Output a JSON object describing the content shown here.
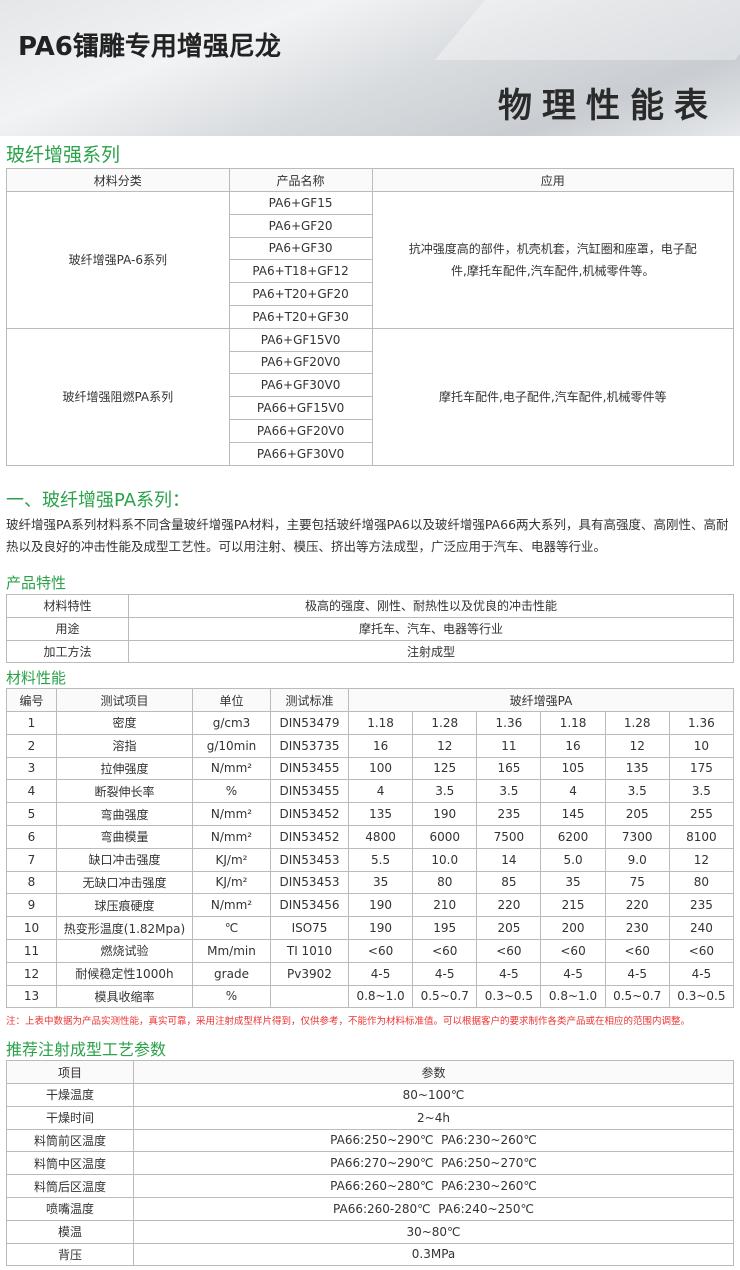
{
  "header": {
    "title": "PA6镭雕专用增强尼龙",
    "banner_text": "物理性能表"
  },
  "series": {
    "heading": "玻纤增强系列",
    "columns": [
      "材料分类",
      "产品名称",
      "应用"
    ],
    "groups": [
      {
        "category": "玻纤增强PA-6系列",
        "products": [
          "PA6+GF15",
          "PA6+GF20",
          "PA6+GF30",
          "PA6+T18+GF12",
          "PA6+T20+GF20",
          "PA6+T20+GF30"
        ],
        "application": "抗冲强度高的部件，机壳机套，汽缸圈和座罩，电子配件,摩托车配件,汽车配件,机械零件等。"
      },
      {
        "category": "玻纤增强阻燃PA系列",
        "products": [
          "PA6+GF15V0",
          "PA6+GF20V0",
          "PA6+GF30V0",
          "PA66+GF15V0",
          "PA66+GF20V0",
          "PA66+GF30V0"
        ],
        "application": "摩托车配件,电子配件,汽车配件,机械零件等"
      }
    ]
  },
  "section1": {
    "heading": "一、玻纤增强PA系列：",
    "paragraph": "玻纤增强PA系列材料系不同含量玻纤增强PA材料，主要包括玻纤增强PA6以及玻纤增强PA66两大系列，具有高强度、高刚性、高耐热以及良好的冲击性能及成型工艺性。可以用注射、模压、挤出等方法成型，广泛应用于汽车、电器等行业。"
  },
  "features": {
    "heading": "产品特性",
    "rows": [
      [
        "材料特性",
        "极高的强度、刚性、耐热性以及优良的冲击性能"
      ],
      [
        "用途",
        "摩托车、汽车、电器等行业"
      ],
      [
        "加工方法",
        "注射成型"
      ]
    ]
  },
  "properties": {
    "heading": "材料性能",
    "columns": [
      "编号",
      "测试项目",
      "单位",
      "测试标准",
      "玻纤增强PA"
    ],
    "rows": [
      [
        "1",
        "密度",
        "g/cm3",
        "DIN53479",
        "1.18",
        "1.28",
        "1.36",
        "1.18",
        "1.28",
        "1.36"
      ],
      [
        "2",
        "溶指",
        "g/10min",
        "DIN53735",
        "16",
        "12",
        "11",
        "16",
        "12",
        "10"
      ],
      [
        "3",
        "拉伸强度",
        "N/mm²",
        "DIN53455",
        "100",
        "125",
        "165",
        "105",
        "135",
        "175"
      ],
      [
        "4",
        "断裂伸长率",
        "%",
        "DIN53455",
        "4",
        "3.5",
        "3.5",
        "4",
        "3.5",
        "3.5"
      ],
      [
        "5",
        "弯曲强度",
        "N/mm²",
        "DIN53452",
        "135",
        "190",
        "235",
        "145",
        "205",
        "255"
      ],
      [
        "6",
        "弯曲模量",
        "N/mm²",
        "DIN53452",
        "4800",
        "6000",
        "7500",
        "6200",
        "7300",
        "8100"
      ],
      [
        "7",
        "缺口冲击强度",
        "KJ/m²",
        "DIN53453",
        "5.5",
        "10.0",
        "14",
        "5.0",
        "9.0",
        "12"
      ],
      [
        "8",
        "无缺口冲击强度",
        "KJ/m²",
        "DIN53453",
        "35",
        "80",
        "85",
        "35",
        "75",
        "80"
      ],
      [
        "9",
        "球压痕硬度",
        "N/mm²",
        "DIN53456",
        "190",
        "210",
        "220",
        "215",
        "220",
        "235"
      ],
      [
        "10",
        "热变形温度(1.82Mpa)",
        "℃",
        "ISO75",
        "190",
        "195",
        "205",
        "200",
        "230",
        "240"
      ],
      [
        "11",
        "燃烧试验",
        "Mm/min",
        "TI 1010",
        "<60",
        "<60",
        "<60",
        "<60",
        "<60",
        "<60"
      ],
      [
        "12",
        "耐候稳定性1000h",
        "grade",
        "Pv3902",
        "4-5",
        "4-5",
        "4-5",
        "4-5",
        "4-5",
        "4-5"
      ],
      [
        "13",
        "模具收缩率",
        "%",
        "",
        "0.8~1.0",
        "0.5~0.7",
        "0.3~0.5",
        "0.8~1.0",
        "0.5~0.7",
        "0.3~0.5"
      ]
    ],
    "note": "注：上表中数据为产品实测性能，真实可靠，采用注射成型样片得到，仅供参考，不能作为材料标准值。可以根据客户的要求制作各类产品或在相应的范围内调整。"
  },
  "process": {
    "heading": "推荐注射成型工艺参数",
    "columns": [
      "项目",
      "参数"
    ],
    "rows": [
      [
        "干燥温度",
        "80~100℃"
      ],
      [
        "干燥时间",
        "2~4h"
      ],
      [
        "料筒前区温度",
        "PA66:250~290℃  PA6:230~260℃"
      ],
      [
        "料筒中区温度",
        "PA66:270~290℃  PA6:250~270℃"
      ],
      [
        "料筒后区温度",
        "PA66:260~280℃  PA6:230~260℃"
      ],
      [
        "喷嘴温度",
        "PA66:260-280℃  PA6:240~250℃"
      ],
      [
        "模温",
        "30~80℃"
      ],
      [
        "背压",
        "0.3MPa"
      ]
    ]
  },
  "colors": {
    "heading_green": "#2aa24a",
    "note_red": "#e33"
  }
}
